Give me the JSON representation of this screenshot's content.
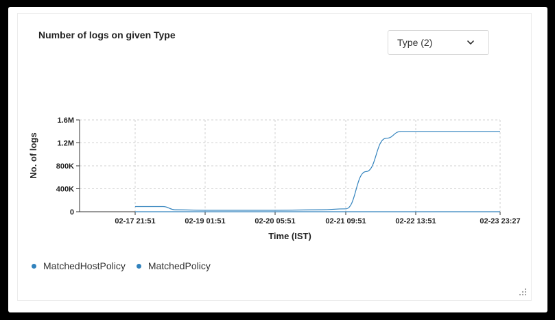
{
  "panel": {
    "title": "Number of logs on given Type",
    "dropdown_label": "Type (2)"
  },
  "chart_data": {
    "type": "line",
    "title": "Number of logs on given Type",
    "xlabel": "Time (IST)",
    "ylabel": "No. of logs",
    "x_ticks": [
      "02-17 21:51",
      "02-19 01:51",
      "02-20 05:51",
      "02-21 09:51",
      "02-22 13:51",
      "02-23 23:27"
    ],
    "y_ticks": [
      "0",
      "400K",
      "800K",
      "1.2M",
      "1.6M"
    ],
    "ylim": [
      0,
      1600000
    ],
    "grid": true,
    "legend_position": "bottom-left",
    "series": [
      {
        "name": "MatchedHostPolicy",
        "color": "#3182bd",
        "points": [
          [
            "02-17 21:51",
            0
          ],
          [
            "02-19 01:51",
            0
          ],
          [
            "02-20 05:51",
            0
          ],
          [
            "02-21 09:51",
            0
          ],
          [
            "02-22 13:51",
            0
          ],
          [
            "02-23 23:27",
            0
          ]
        ]
      },
      {
        "name": "MatchedPolicy",
        "color": "#3182bd",
        "points": [
          [
            "02-17 21:51",
            90000
          ],
          [
            "02-18 09:00",
            90000
          ],
          [
            "02-18 14:00",
            35000
          ],
          [
            "02-19 01:51",
            25000
          ],
          [
            "02-20 05:51",
            25000
          ],
          [
            "02-21 00:00",
            35000
          ],
          [
            "02-21 09:51",
            50000
          ],
          [
            "02-21 18:00",
            700000
          ],
          [
            "02-22 02:00",
            1280000
          ],
          [
            "02-22 08:00",
            1400000
          ],
          [
            "02-22 13:51",
            1400000
          ],
          [
            "02-23 23:27",
            1400000
          ]
        ]
      }
    ]
  }
}
